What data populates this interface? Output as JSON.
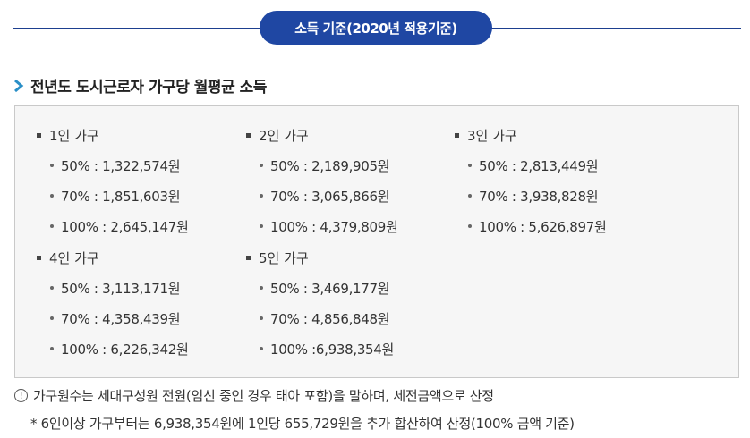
{
  "header": {
    "title": "소득 기준(2020년 적용기준)"
  },
  "section": {
    "title": "전년도 도시근로자 가구당 월평균 소득"
  },
  "groups": [
    {
      "label": "1인 가구",
      "items": [
        "50% : 1,322,574원",
        "70% : 1,851,603원",
        "100% : 2,645,147원"
      ]
    },
    {
      "label": "2인 가구",
      "items": [
        "50% : 2,189,905원",
        "70% : 3,065,866원",
        "100% : 4,379,809원"
      ]
    },
    {
      "label": "3인 가구",
      "items": [
        "50% : 2,813,449원",
        "70% : 3,938,828원",
        "100% : 5,626,897원"
      ]
    },
    {
      "label": "4인 가구",
      "items": [
        "50% : 3,113,171원",
        "70% : 4,358,439원",
        "100% : 6,226,342원"
      ]
    },
    {
      "label": "5인 가구",
      "items": [
        "50% : 3,469,177원",
        "70% : 4,856,848원",
        "100% :6,938,354원"
      ]
    }
  ],
  "notes": {
    "info_icon": "!",
    "main": "가구원수는 세대구성원 전원(임신 중인 경우 태아 포함)을 말하며, 세전금액으로 산정",
    "sub": "* 6인이상 가구부터는 6,938,354원에 1인당 655,729원을 추가 합산하여 산정(100% 금액 기준)"
  },
  "colors": {
    "accent": "#1f47a3",
    "chevron": "#2a8fc7",
    "box_bg": "#f6f6f6"
  }
}
